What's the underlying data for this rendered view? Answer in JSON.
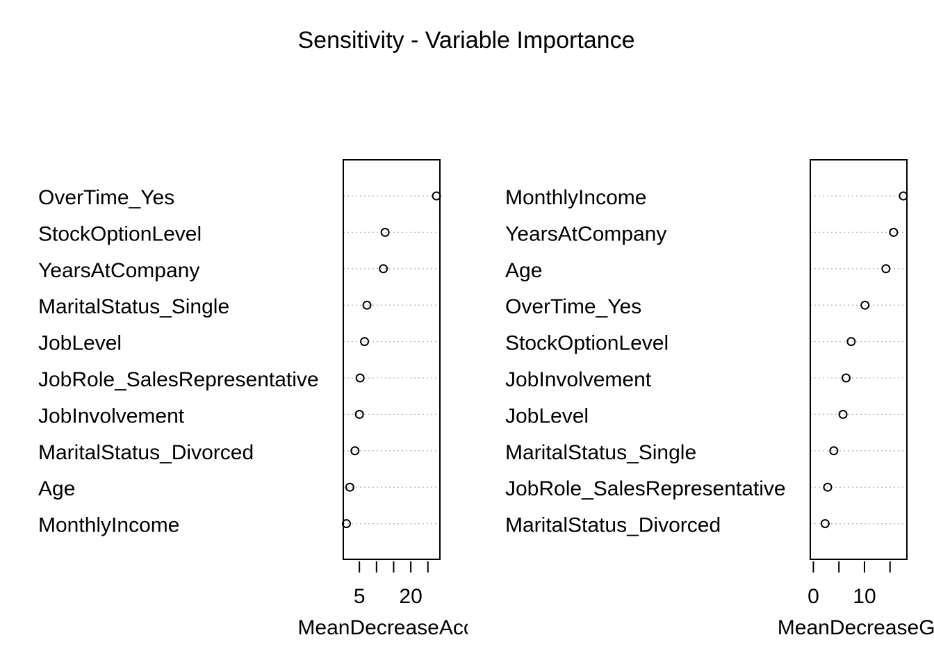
{
  "title": "Sensitivity - Variable Importance",
  "chart_data": [
    {
      "type": "scatter",
      "variant": "dotchart",
      "xlabel": "MeanDecreaseAccuracy",
      "xlabel_visible": "MeanDecreaseAccu",
      "xlim": [
        0.3,
        28.5
      ],
      "xticks": [
        5,
        10,
        15,
        20,
        25
      ],
      "xtick_labels": [
        "5",
        "",
        "",
        "20",
        ""
      ],
      "grid": "dotted horizontal",
      "labels": [
        "OverTime_Yes",
        "StockOptionLevel",
        "YearsAtCompany",
        "MaritalStatus_Single",
        "JobLevel",
        "JobRole_SalesRepresentative",
        "JobInvolvement",
        "MaritalStatus_Divorced",
        "Age",
        "MonthlyIncome"
      ],
      "values": [
        27.5,
        12.5,
        12.0,
        7.2,
        6.5,
        5.2,
        5.0,
        3.7,
        2.2,
        1.2
      ]
    },
    {
      "type": "scatter",
      "variant": "dotchart",
      "xlabel": "MeanDecreaseGini",
      "xlabel_visible": "MeanDecreaseGi",
      "xlim": [
        -0.6,
        18.3
      ],
      "xticks": [
        0,
        5,
        10,
        15
      ],
      "xtick_labels": [
        "0",
        "",
        "10",
        ""
      ],
      "grid": "dotted horizontal",
      "labels": [
        "MonthlyIncome",
        "YearsAtCompany",
        "Age",
        "OverTime_Yes",
        "StockOptionLevel",
        "JobInvolvement",
        "JobLevel",
        "MaritalStatus_Single",
        "JobRole_SalesRepresentative",
        "MaritalStatus_Divorced"
      ],
      "values": [
        17.6,
        15.7,
        14.2,
        10.1,
        7.4,
        6.4,
        5.8,
        4.0,
        2.8,
        2.3
      ]
    }
  ]
}
